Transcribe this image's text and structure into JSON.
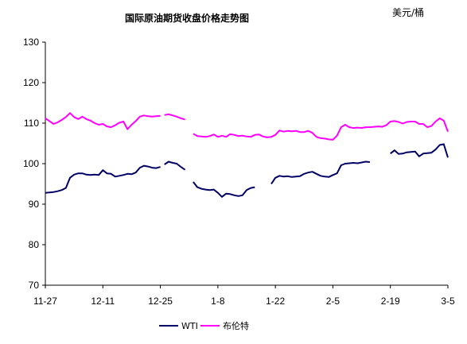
{
  "chart_data": {
    "type": "line",
    "title": "国际原油期货收盘价格走势图",
    "unit_label": "美元/桶",
    "xlabel": "",
    "ylabel": "",
    "ylim": [
      70,
      130
    ],
    "yticks": [
      70,
      80,
      90,
      100,
      110,
      120,
      130
    ],
    "x_tick_labels": [
      "11-27",
      "12-11",
      "12-25",
      "1-8",
      "1-22",
      "2-5",
      "2-19",
      "3-5"
    ],
    "x_tick_day_index": [
      0,
      14,
      28,
      42,
      56,
      70,
      84,
      98
    ],
    "x_range_days": [
      0,
      98
    ],
    "grid": false,
    "legend_position": "bottom",
    "colors": {
      "WTI": "#000066",
      "布伦特": "#ff00ff",
      "axis": "#000000"
    },
    "series": [
      {
        "name": "WTI",
        "segments": [
          [
            [
              0,
              92.8
            ],
            [
              2,
              93.0
            ],
            [
              3,
              93.2
            ],
            [
              4,
              93.5
            ],
            [
              5,
              94.0
            ],
            [
              6,
              96.5
            ],
            [
              7,
              97.3
            ],
            [
              8,
              97.6
            ],
            [
              9,
              97.6
            ],
            [
              10,
              97.3
            ],
            [
              11,
              97.2
            ],
            [
              12,
              97.3
            ],
            [
              13,
              97.2
            ],
            [
              14,
              98.4
            ],
            [
              15,
              97.6
            ],
            [
              16,
              97.5
            ],
            [
              17,
              96.8
            ],
            [
              18,
              97.0
            ],
            [
              19,
              97.2
            ],
            [
              20,
              97.5
            ],
            [
              21,
              97.4
            ],
            [
              22,
              97.8
            ],
            [
              23,
              99.0
            ],
            [
              24,
              99.5
            ],
            [
              25,
              99.3
            ],
            [
              26,
              99.0
            ],
            [
              27,
              98.9
            ],
            [
              28,
              99.2
            ]
          ],
          [
            [
              29,
              99.8
            ],
            [
              30,
              100.5
            ],
            [
              31,
              100.2
            ],
            [
              32,
              100.0
            ],
            [
              33,
              99.2
            ],
            [
              34,
              98.5
            ]
          ],
          [
            [
              36,
              95.5
            ],
            [
              37,
              94.2
            ],
            [
              38,
              93.8
            ],
            [
              39,
              93.6
            ],
            [
              40,
              93.5
            ],
            [
              41,
              93.6
            ],
            [
              42,
              92.8
            ],
            [
              43,
              91.8
            ],
            [
              44,
              92.6
            ],
            [
              45,
              92.5
            ],
            [
              46,
              92.2
            ],
            [
              47,
              92.0
            ],
            [
              48,
              92.2
            ],
            [
              49,
              93.5
            ],
            [
              50,
              94.0
            ],
            [
              51,
              94.2
            ]
          ],
          [
            [
              55,
              95.0
            ],
            [
              56,
              96.5
            ],
            [
              57,
              97.0
            ],
            [
              58,
              96.8
            ],
            [
              59,
              96.9
            ],
            [
              60,
              96.7
            ],
            [
              61,
              96.8
            ],
            [
              62,
              96.9
            ],
            [
              63,
              97.5
            ],
            [
              64,
              97.8
            ],
            [
              65,
              98.0
            ],
            [
              66,
              97.5
            ],
            [
              67,
              97.0
            ],
            [
              68,
              96.8
            ],
            [
              69,
              96.7
            ],
            [
              70,
              97.2
            ],
            [
              71,
              97.6
            ],
            [
              72,
              99.6
            ],
            [
              73,
              100.0
            ],
            [
              74,
              100.1
            ],
            [
              75,
              100.2
            ],
            [
              76,
              100.1
            ],
            [
              77,
              100.3
            ],
            [
              78,
              100.5
            ],
            [
              79,
              100.4
            ]
          ],
          [
            [
              84,
              102.5
            ],
            [
              85,
              103.3
            ],
            [
              86,
              102.4
            ],
            [
              87,
              102.5
            ],
            [
              88,
              102.8
            ],
            [
              89,
              102.9
            ],
            [
              90,
              103.0
            ],
            [
              91,
              101.8
            ],
            [
              92,
              102.5
            ],
            [
              93,
              102.6
            ],
            [
              94,
              102.7
            ],
            [
              95,
              103.5
            ],
            [
              96,
              104.6
            ],
            [
              97,
              104.8
            ],
            [
              98,
              101.5
            ]
          ]
        ]
      },
      {
        "name": "布伦特",
        "segments": [
          [
            [
              0,
              111.2
            ],
            [
              1,
              110.5
            ],
            [
              2,
              109.8
            ],
            [
              3,
              110.2
            ],
            [
              4,
              110.8
            ],
            [
              5,
              111.5
            ],
            [
              6,
              112.5
            ],
            [
              7,
              111.5
            ],
            [
              8,
              111.0
            ],
            [
              9,
              111.6
            ],
            [
              10,
              111.0
            ],
            [
              11,
              110.6
            ],
            [
              12,
              110.0
            ],
            [
              13,
              109.6
            ],
            [
              14,
              109.8
            ],
            [
              15,
              109.2
            ],
            [
              16,
              109.0
            ],
            [
              17,
              109.5
            ],
            [
              18,
              110.1
            ],
            [
              19,
              110.4
            ],
            [
              20,
              108.5
            ],
            [
              21,
              109.6
            ],
            [
              22,
              110.5
            ],
            [
              23,
              111.6
            ],
            [
              24,
              111.9
            ],
            [
              25,
              111.7
            ],
            [
              26,
              111.6
            ],
            [
              27,
              111.7
            ],
            [
              28,
              111.8
            ]
          ],
          [
            [
              29,
              112.0
            ],
            [
              30,
              112.2
            ],
            [
              31,
              111.9
            ],
            [
              32,
              111.6
            ],
            [
              33,
              111.2
            ],
            [
              34,
              110.9
            ]
          ],
          [
            [
              36,
              107.4
            ],
            [
              37,
              106.8
            ],
            [
              38,
              106.7
            ],
            [
              39,
              106.6
            ],
            [
              40,
              106.8
            ],
            [
              41,
              107.2
            ],
            [
              42,
              106.6
            ],
            [
              43,
              106.9
            ],
            [
              44,
              106.6
            ],
            [
              45,
              107.3
            ],
            [
              46,
              107.1
            ],
            [
              47,
              106.8
            ],
            [
              48,
              106.9
            ],
            [
              49,
              106.7
            ],
            [
              50,
              106.6
            ],
            [
              51,
              107.1
            ],
            [
              52,
              107.2
            ],
            [
              53,
              106.7
            ],
            [
              54,
              106.5
            ],
            [
              55,
              106.6
            ],
            [
              56,
              107.1
            ],
            [
              57,
              108.2
            ],
            [
              58,
              107.9
            ],
            [
              59,
              108.1
            ],
            [
              60,
              108.0
            ],
            [
              61,
              108.1
            ],
            [
              62,
              107.8
            ],
            [
              63,
              107.8
            ],
            [
              64,
              108.1
            ],
            [
              65,
              107.6
            ],
            [
              66,
              106.6
            ],
            [
              67,
              106.3
            ],
            [
              68,
              106.2
            ],
            [
              69,
              106.0
            ],
            [
              70,
              105.9
            ],
            [
              71,
              106.9
            ],
            [
              72,
              109.0
            ],
            [
              73,
              109.6
            ],
            [
              74,
              109.0
            ],
            [
              75,
              108.8
            ],
            [
              76,
              108.9
            ],
            [
              77,
              108.8
            ],
            [
              78,
              109.0
            ],
            [
              79,
              109.0
            ],
            [
              80,
              109.1
            ],
            [
              81,
              109.2
            ],
            [
              82,
              109.1
            ],
            [
              83,
              109.5
            ],
            [
              84,
              110.4
            ],
            [
              85,
              110.5
            ],
            [
              86,
              110.3
            ],
            [
              87,
              109.9
            ],
            [
              88,
              110.3
            ],
            [
              89,
              110.4
            ],
            [
              90,
              110.4
            ],
            [
              91,
              109.8
            ],
            [
              92,
              109.8
            ],
            [
              93,
              109.0
            ],
            [
              94,
              109.3
            ],
            [
              95,
              110.4
            ],
            [
              96,
              111.2
            ],
            [
              97,
              110.6
            ],
            [
              98,
              107.9
            ]
          ]
        ]
      }
    ]
  }
}
